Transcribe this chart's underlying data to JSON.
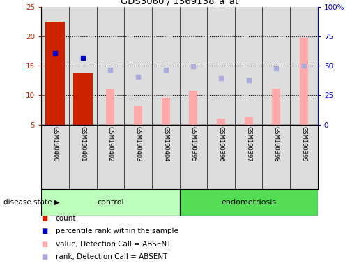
{
  "title": "GDS3060 / 1569138_a_at",
  "samples": [
    "GSM190400",
    "GSM190401",
    "GSM190402",
    "GSM190403",
    "GSM190404",
    "GSM190395",
    "GSM190396",
    "GSM190397",
    "GSM190398",
    "GSM190399"
  ],
  "control_count": 5,
  "endometriosis_count": 5,
  "bar_values_red": [
    22.5,
    13.8,
    null,
    null,
    null,
    null,
    null,
    null,
    null,
    null
  ],
  "bar_values_pink": [
    null,
    null,
    11.0,
    8.1,
    9.6,
    10.7,
    6.0,
    6.3,
    11.1,
    19.8
  ],
  "dots_blue_dark": [
    17.1,
    16.3,
    null,
    null,
    null,
    null,
    null,
    null,
    null,
    null
  ],
  "dots_blue_light": [
    null,
    null,
    14.3,
    13.1,
    14.3,
    14.9,
    12.9,
    12.5,
    14.5,
    15.0
  ],
  "ylim_left": [
    5,
    25
  ],
  "ylim_right": [
    0,
    100
  ],
  "yticks_left": [
    5,
    10,
    15,
    20,
    25
  ],
  "yticks_right": [
    0,
    25,
    50,
    75,
    100
  ],
  "ytick_labels_right": [
    "0",
    "25",
    "50",
    "75",
    "100%"
  ],
  "color_red": "#cc2200",
  "color_pink": "#ffaaaa",
  "color_blue_dark": "#0000cc",
  "color_blue_light": "#aaaadd",
  "color_control_bg": "#bbffbb",
  "color_endo_bg": "#55dd55",
  "color_sample_bg": "#dddddd",
  "label_count": "count",
  "label_percentile": "percentile rank within the sample",
  "label_value_absent": "value, Detection Call = ABSENT",
  "label_rank_absent": "rank, Detection Call = ABSENT",
  "group_label_control": "control",
  "group_label_endo": "endometriosis",
  "disease_state_label": "disease state"
}
